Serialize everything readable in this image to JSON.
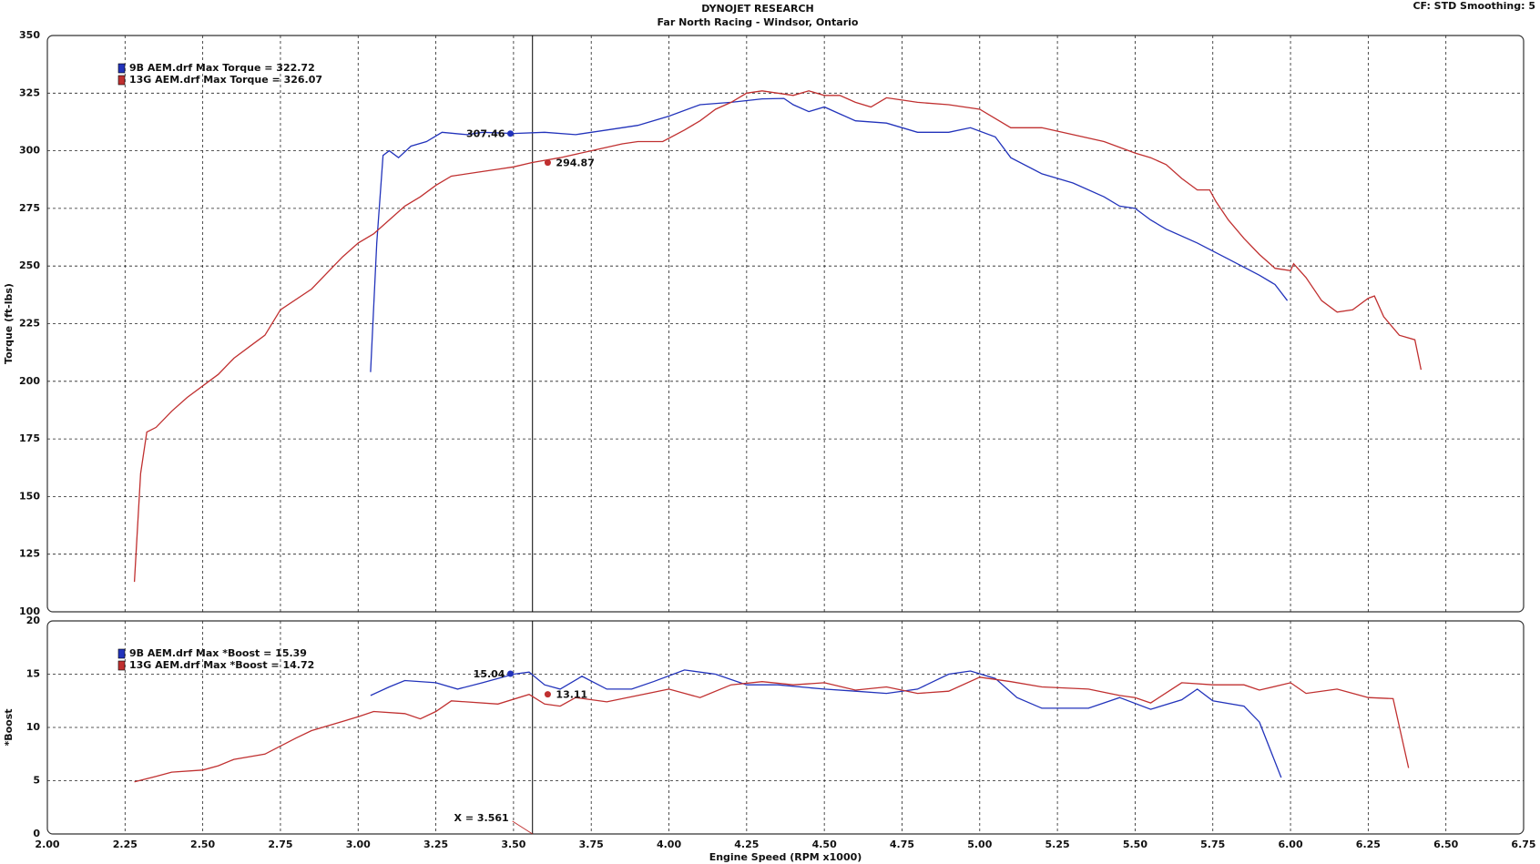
{
  "header": {
    "title": "DYNOJET RESEARCH",
    "subtitle": "Far North Racing - Windsor, Ontario",
    "settings": "CF: STD  Smoothing: 5"
  },
  "chart_data": [
    {
      "type": "line",
      "ylabel": "Torque (ft-lbs)",
      "ylim": [
        100,
        350
      ],
      "yticks": [
        100,
        125,
        150,
        175,
        200,
        225,
        250,
        275,
        300,
        325,
        350
      ],
      "grid": true,
      "series": [
        {
          "name": "9B AEM.drf Max Torque = 322.72",
          "color": "#2233bb",
          "x": [
            3.04,
            3.06,
            3.08,
            3.1,
            3.13,
            3.17,
            3.22,
            3.27,
            3.35,
            3.4,
            3.5,
            3.6,
            3.7,
            3.8,
            3.9,
            4.0,
            4.1,
            4.2,
            4.3,
            4.37,
            4.4,
            4.45,
            4.5,
            4.55,
            4.6,
            4.7,
            4.8,
            4.9,
            4.97,
            5.05,
            5.1,
            5.2,
            5.3,
            5.4,
            5.45,
            5.5,
            5.55,
            5.6,
            5.7,
            5.8,
            5.9,
            5.95,
            5.99
          ],
          "values": [
            204,
            260,
            298,
            300,
            297,
            302,
            304,
            308,
            307,
            308,
            307.5,
            308,
            307,
            309,
            311,
            315,
            320,
            321,
            322.5,
            322.7,
            320,
            317,
            319,
            316,
            313,
            312,
            308,
            308,
            310,
            306,
            297,
            290,
            286,
            280,
            276,
            275,
            270,
            266,
            260,
            253,
            246,
            242,
            235
          ],
          "marker": {
            "x": 3.49,
            "value": 307.46
          }
        },
        {
          "name": "13G AEM.drf Max Torque = 326.07",
          "color": "#c03030",
          "x": [
            2.28,
            2.3,
            2.32,
            2.35,
            2.4,
            2.45,
            2.55,
            2.6,
            2.65,
            2.7,
            2.75,
            2.85,
            2.95,
            3.0,
            3.05,
            3.1,
            3.15,
            3.2,
            3.25,
            3.3,
            3.4,
            3.45,
            3.5,
            3.56,
            3.65,
            3.75,
            3.85,
            3.9,
            3.98,
            4.05,
            4.1,
            4.15,
            4.2,
            4.25,
            4.3,
            4.35,
            4.4,
            4.45,
            4.5,
            4.55,
            4.6,
            4.65,
            4.7,
            4.75,
            4.8,
            4.9,
            5.0,
            5.05,
            5.1,
            5.2,
            5.3,
            5.4,
            5.5,
            5.55,
            5.6,
            5.65,
            5.7,
            5.74,
            5.76,
            5.8,
            5.85,
            5.9,
            5.95,
            6.0,
            6.01,
            6.05,
            6.1,
            6.15,
            6.2,
            6.25,
            6.27,
            6.3,
            6.35,
            6.4,
            6.42
          ],
          "values": [
            113,
            160,
            178,
            180,
            187,
            193,
            203,
            210,
            215,
            220,
            231,
            240,
            254,
            260,
            264,
            270,
            276,
            280,
            285,
            289,
            291,
            292,
            293,
            294.9,
            297,
            300,
            303,
            304,
            304,
            309,
            313,
            318,
            321,
            325,
            326,
            325,
            324,
            326,
            324,
            324,
            321,
            319,
            323,
            322,
            321,
            320,
            318,
            314,
            310,
            310,
            307,
            304,
            299,
            297,
            294,
            288,
            283,
            283,
            278,
            270,
            262,
            255,
            249,
            248,
            251,
            245,
            235,
            230,
            231,
            236,
            237,
            228,
            220,
            218,
            205
          ],
          "marker": {
            "x": 3.61,
            "value": 294.87
          }
        }
      ]
    },
    {
      "type": "line",
      "ylabel": "*Boost",
      "xlabel": "Engine Speed (RPM x1000)",
      "xlim": [
        2,
        6.75
      ],
      "xticks": [
        {
          "value": 2,
          "label": "2.00"
        },
        {
          "value": 2.25,
          "label": "2.25"
        },
        {
          "value": 2.5,
          "label": "2.50"
        },
        {
          "value": 2.75,
          "label": "2.75"
        },
        {
          "value": 3,
          "label": "3.00"
        },
        {
          "value": 3.25,
          "label": "3.25"
        },
        {
          "value": 3.5,
          "label": "3.50"
        },
        {
          "value": 3.75,
          "label": "3.75"
        },
        {
          "value": 4,
          "label": "4.00"
        },
        {
          "value": 4.25,
          "label": "4.25"
        },
        {
          "value": 4.5,
          "label": "4.50"
        },
        {
          "value": 4.75,
          "label": "4.75"
        },
        {
          "value": 5,
          "label": "5.00"
        },
        {
          "value": 5.25,
          "label": "5.25"
        },
        {
          "value": 5.5,
          "label": "5.50"
        },
        {
          "value": 5.75,
          "label": "5.75"
        },
        {
          "value": 6,
          "label": "6.00"
        },
        {
          "value": 6.25,
          "label": "6.25"
        },
        {
          "value": 6.5,
          "label": "6.50"
        },
        {
          "value": 6.75,
          "label": "6.75"
        }
      ],
      "ylim": [
        0,
        20
      ],
      "yticks": [
        0,
        5,
        10,
        15,
        20
      ],
      "grid": true,
      "cursor": {
        "value": 3.561,
        "label": "X = 3.561"
      },
      "series": [
        {
          "name": "9B AEM.drf Max *Boost = 15.39",
          "color": "#2233bb",
          "x": [
            3.04,
            3.1,
            3.15,
            3.25,
            3.32,
            3.4,
            3.5,
            3.55,
            3.6,
            3.65,
            3.72,
            3.8,
            3.88,
            3.95,
            4.05,
            4.15,
            4.25,
            4.35,
            4.5,
            4.6,
            4.7,
            4.8,
            4.9,
            4.97,
            5.05,
            5.12,
            5.2,
            5.35,
            5.45,
            5.55,
            5.65,
            5.7,
            5.75,
            5.85,
            5.9,
            5.97
          ],
          "values": [
            13,
            13.8,
            14.4,
            14.2,
            13.6,
            14.2,
            15.0,
            15.2,
            14.0,
            13.6,
            14.8,
            13.6,
            13.6,
            14.3,
            15.39,
            15.0,
            14.0,
            14.0,
            13.6,
            13.4,
            13.2,
            13.6,
            15.0,
            15.3,
            14.6,
            12.8,
            11.8,
            11.8,
            12.8,
            11.7,
            12.6,
            13.6,
            12.5,
            12.0,
            10.5,
            5.3
          ],
          "marker": {
            "x": 3.49,
            "value": 15.04
          }
        },
        {
          "name": "13G AEM.drf Max *Boost = 14.72",
          "color": "#c03030",
          "x": [
            2.28,
            2.35,
            2.4,
            2.5,
            2.55,
            2.6,
            2.7,
            2.8,
            2.85,
            3.0,
            3.05,
            3.15,
            3.2,
            3.25,
            3.3,
            3.45,
            3.55,
            3.6,
            3.65,
            3.7,
            3.8,
            3.9,
            4.0,
            4.1,
            4.2,
            4.3,
            4.4,
            4.5,
            4.6,
            4.7,
            4.8,
            4.9,
            5.0,
            5.1,
            5.2,
            5.35,
            5.45,
            5.5,
            5.55,
            5.65,
            5.75,
            5.85,
            5.9,
            6.0,
            6.05,
            6.15,
            6.25,
            6.33,
            6.38
          ],
          "values": [
            4.9,
            5.4,
            5.8,
            6.0,
            6.4,
            7.0,
            7.5,
            9.0,
            9.7,
            11.0,
            11.5,
            11.3,
            10.8,
            11.5,
            12.5,
            12.2,
            13.1,
            12.2,
            12.0,
            12.8,
            12.4,
            13.0,
            13.6,
            12.8,
            14.0,
            14.3,
            14.0,
            14.2,
            13.5,
            13.8,
            13.2,
            13.4,
            14.72,
            14.3,
            13.8,
            13.6,
            13.0,
            12.8,
            12.3,
            14.2,
            14.0,
            14.0,
            13.5,
            14.2,
            13.2,
            13.6,
            12.8,
            12.7,
            6.2
          ],
          "marker": {
            "x": 3.61,
            "value": 13.11
          }
        }
      ]
    }
  ]
}
